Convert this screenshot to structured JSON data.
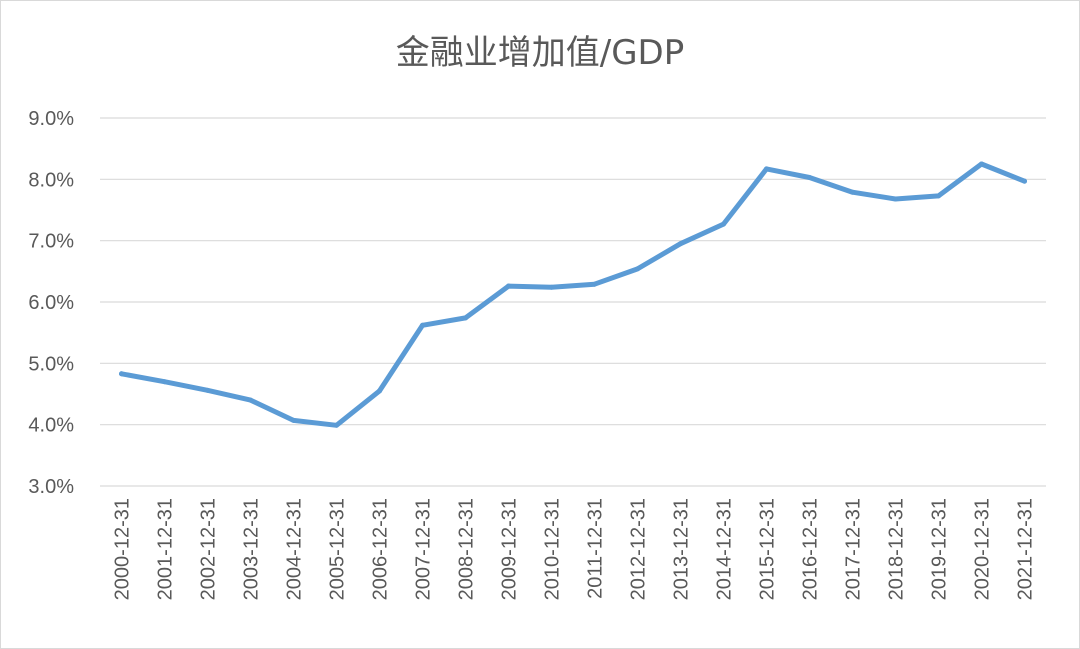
{
  "chart_data": {
    "type": "line",
    "title": "金融业增加值/GDP",
    "xlabel": "",
    "ylabel": "",
    "categories": [
      "2000-12-31",
      "2001-12-31",
      "2002-12-31",
      "2003-12-31",
      "2004-12-31",
      "2005-12-31",
      "2006-12-31",
      "2007-12-31",
      "2008-12-31",
      "2009-12-31",
      "2010-12-31",
      "2011-12-31",
      "2012-12-31",
      "2013-12-31",
      "2014-12-31",
      "2015-12-31",
      "2016-12-31",
      "2017-12-31",
      "2018-12-31",
      "2019-12-31",
      "2020-12-31",
      "2021-12-31"
    ],
    "series": [
      {
        "values": [
          4.83,
          4.7,
          4.56,
          4.4,
          4.07,
          3.99,
          4.55,
          5.62,
          5.74,
          6.26,
          6.24,
          6.29,
          6.54,
          6.95,
          7.27,
          8.17,
          8.03,
          7.79,
          7.68,
          7.73,
          8.25,
          7.97
        ],
        "color": "#5b9bd5"
      }
    ],
    "ylim": [
      3.0,
      9.0
    ],
    "yticks": [
      3.0,
      4.0,
      5.0,
      6.0,
      7.0,
      8.0,
      9.0
    ],
    "ytick_format": "percent_1dp",
    "grid": true,
    "legend": "none"
  }
}
